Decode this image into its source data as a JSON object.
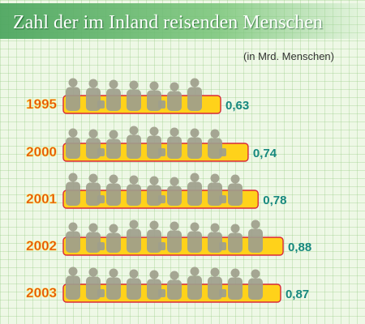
{
  "chart_data": {
    "type": "bar",
    "title": "Zahl der im Inland reisenden Menschen",
    "subtitle": "(in Mrd. Menschen)",
    "categories": [
      "1995",
      "2000",
      "2001",
      "2002",
      "2003"
    ],
    "values": [
      0.63,
      0.74,
      0.78,
      0.88,
      0.87
    ],
    "value_labels": [
      "0,63",
      "0,74",
      "0,78",
      "0,88",
      "0,87"
    ],
    "xlabel": "",
    "ylabel": "",
    "orientation": "horizontal",
    "grid": true,
    "colors": {
      "bar_fill": "#ffd21a",
      "bar_border": "#d8283a",
      "year_label": "#e0460a",
      "value_label": "#16887e",
      "silhouette": "#9e9e8c",
      "title_band": "#4ea660"
    }
  }
}
